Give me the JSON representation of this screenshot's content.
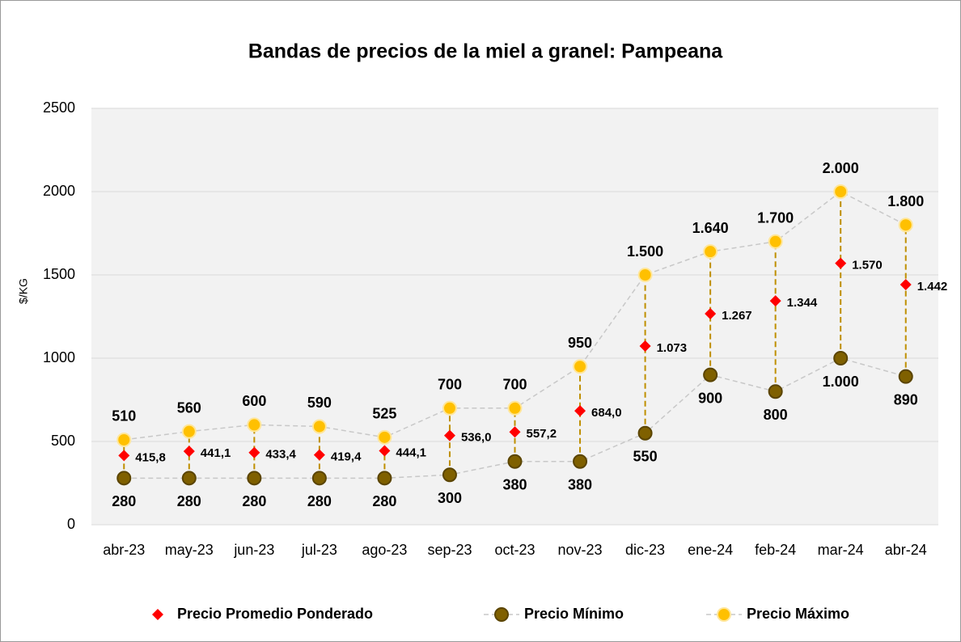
{
  "chart_data": {
    "type": "line",
    "title": "Bandas de precios de la miel a granel: Pampeana",
    "y_label": "$/KG",
    "categories": [
      "abr-23",
      "may-23",
      "jun-23",
      "jul-23",
      "ago-23",
      "sep-23",
      "oct-23",
      "nov-23",
      "dic-23",
      "ene-24",
      "feb-24",
      "mar-24",
      "abr-24"
    ],
    "ylim": [
      0,
      2500
    ],
    "yticks": [
      0,
      500,
      1000,
      1500,
      2000,
      2500
    ],
    "grid": true,
    "legend": "bottom",
    "series": [
      {
        "name": "Precio Promedio Ponderado",
        "color": "#ff0000",
        "marker": "diamond",
        "values": [
          415.8,
          441.1,
          433.4,
          419.4,
          444.1,
          536.0,
          557.2,
          684.0,
          1073,
          1267,
          1344,
          1570,
          1442
        ],
        "value_labels": [
          "415,8",
          "441,1",
          "433,4",
          "419,4",
          "444,1",
          "536,0",
          "557,2",
          "684,0",
          "1.073",
          "1.267",
          "1.344",
          "1.570",
          "1.442"
        ]
      },
      {
        "name": "Precio Mínimo",
        "color": "#7f6000",
        "marker": "circle",
        "values": [
          280,
          280,
          280,
          280,
          280,
          300,
          380,
          380,
          550,
          900,
          800,
          1000,
          890
        ],
        "value_labels": [
          "280",
          "280",
          "280",
          "280",
          "280",
          "300",
          "380",
          "380",
          "550",
          "900",
          "800",
          "1.000",
          "890"
        ]
      },
      {
        "name": "Precio Máximo",
        "color": "#ffc000",
        "marker": "circle",
        "values": [
          510,
          560,
          600,
          590,
          525,
          700,
          700,
          950,
          1500,
          1640,
          1700,
          2000,
          1800
        ],
        "value_labels": [
          "510",
          "560",
          "600",
          "590",
          "525",
          "700",
          "700",
          "950",
          "1.500",
          "1.640",
          "1.700",
          "2.000",
          "1.800"
        ]
      }
    ]
  }
}
